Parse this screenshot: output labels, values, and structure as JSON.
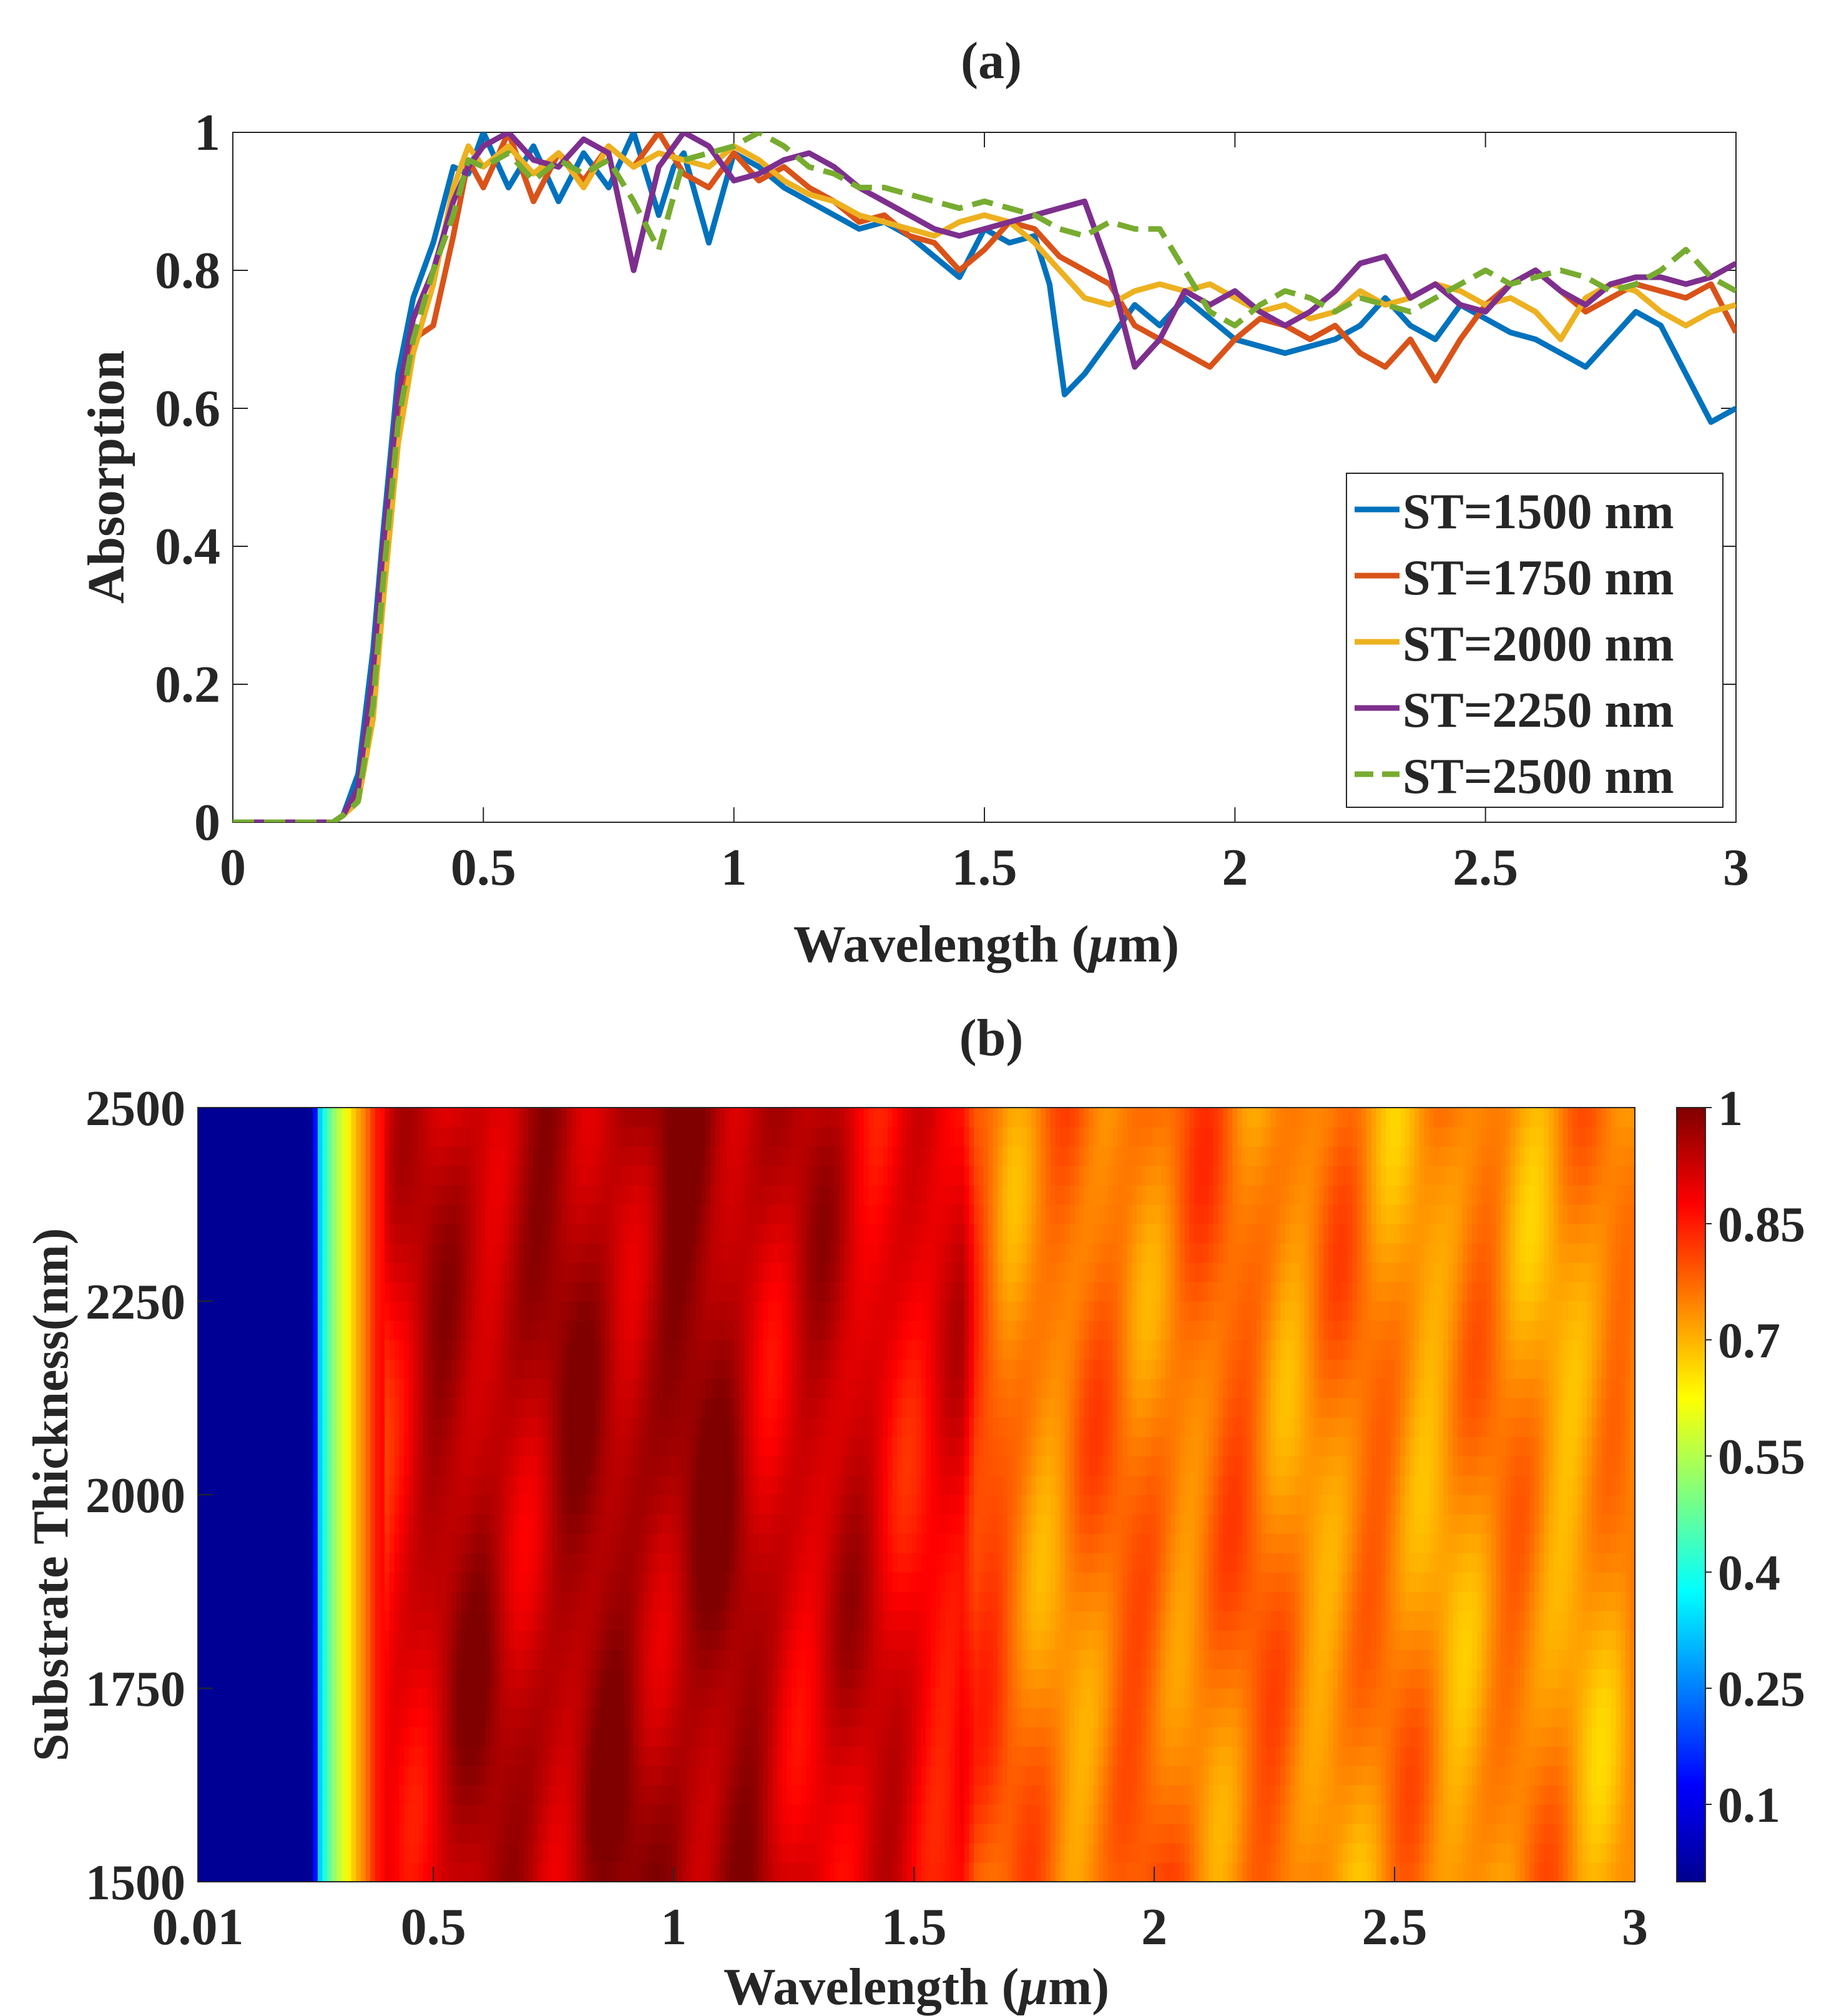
{
  "chart_data": [
    {
      "panel_label": "(a)",
      "type": "line",
      "xlabel_prefix": "Wavelength (",
      "xlabel_mu": "μ",
      "xlabel_suffix": "m)",
      "ylabel": "Absorption",
      "xlim": [
        0,
        3
      ],
      "ylim": [
        0,
        1
      ],
      "xticks": [
        0,
        0.5,
        1,
        1.5,
        2,
        2.5,
        3
      ],
      "xtick_labels": [
        "0",
        "0.5",
        "1",
        "1.5",
        "2",
        "2.5",
        "3"
      ],
      "yticks": [
        0,
        0.2,
        0.4,
        0.6,
        0.8,
        1
      ],
      "ytick_labels": [
        "0",
        "0.2",
        "0.4",
        "0.6",
        "0.8",
        "1"
      ],
      "legend_position": "bottom-right",
      "series": [
        {
          "name": "ST=1500 nm",
          "color": "#0072BD",
          "dash": false,
          "x": [
            0,
            0.1,
            0.2,
            0.22,
            0.25,
            0.28,
            0.3,
            0.33,
            0.36,
            0.4,
            0.44,
            0.47,
            0.5,
            0.55,
            0.6,
            0.65,
            0.7,
            0.75,
            0.8,
            0.85,
            0.88,
            0.9,
            0.95,
            1.0,
            1.05,
            1.1,
            1.15,
            1.2,
            1.25,
            1.3,
            1.35,
            1.4,
            1.45,
            1.5,
            1.55,
            1.6,
            1.63,
            1.66,
            1.7,
            1.75,
            1.8,
            1.85,
            1.9,
            1.95,
            2.0,
            2.05,
            2.1,
            2.15,
            2.2,
            2.25,
            2.3,
            2.35,
            2.4,
            2.45,
            2.5,
            2.55,
            2.6,
            2.65,
            2.7,
            2.75,
            2.8,
            2.85,
            2.9,
            2.95,
            3.0
          ],
          "y": [
            0,
            0,
            0,
            0.01,
            0.07,
            0.25,
            0.42,
            0.65,
            0.76,
            0.84,
            0.95,
            0.94,
            1.0,
            0.92,
            0.98,
            0.9,
            0.97,
            0.92,
            1.0,
            0.88,
            0.95,
            0.97,
            0.84,
            0.97,
            0.95,
            0.92,
            0.9,
            0.88,
            0.86,
            0.87,
            0.85,
            0.82,
            0.79,
            0.86,
            0.84,
            0.85,
            0.78,
            0.62,
            0.65,
            0.7,
            0.75,
            0.72,
            0.76,
            0.73,
            0.7,
            0.69,
            0.68,
            0.69,
            0.7,
            0.72,
            0.76,
            0.72,
            0.7,
            0.75,
            0.73,
            0.71,
            0.7,
            0.68,
            0.66,
            0.7,
            0.74,
            0.72,
            0.65,
            0.58,
            0.6
          ]
        },
        {
          "name": "ST=1750 nm",
          "color": "#D95319",
          "dash": false,
          "x": [
            0,
            0.1,
            0.2,
            0.22,
            0.25,
            0.28,
            0.3,
            0.33,
            0.36,
            0.4,
            0.44,
            0.47,
            0.5,
            0.55,
            0.6,
            0.65,
            0.7,
            0.75,
            0.8,
            0.85,
            0.9,
            0.95,
            1.0,
            1.05,
            1.1,
            1.15,
            1.2,
            1.25,
            1.3,
            1.35,
            1.4,
            1.45,
            1.5,
            1.55,
            1.6,
            1.65,
            1.7,
            1.75,
            1.8,
            1.85,
            1.9,
            1.95,
            2.0,
            2.05,
            2.1,
            2.15,
            2.2,
            2.25,
            2.3,
            2.35,
            2.4,
            2.45,
            2.5,
            2.55,
            2.6,
            2.65,
            2.7,
            2.75,
            2.8,
            2.85,
            2.9,
            2.95,
            3.0
          ],
          "y": [
            0,
            0,
            0,
            0.01,
            0.04,
            0.2,
            0.38,
            0.6,
            0.7,
            0.72,
            0.85,
            0.96,
            0.92,
            1.0,
            0.9,
            0.97,
            0.93,
            0.98,
            0.95,
            1.0,
            0.94,
            0.92,
            0.97,
            0.93,
            0.95,
            0.92,
            0.9,
            0.87,
            0.88,
            0.85,
            0.84,
            0.8,
            0.83,
            0.87,
            0.86,
            0.82,
            0.8,
            0.78,
            0.72,
            0.7,
            0.68,
            0.66,
            0.7,
            0.73,
            0.72,
            0.7,
            0.72,
            0.68,
            0.66,
            0.7,
            0.64,
            0.7,
            0.75,
            0.78,
            0.8,
            0.77,
            0.74,
            0.76,
            0.78,
            0.77,
            0.76,
            0.78,
            0.71
          ]
        },
        {
          "name": "ST=2000 nm",
          "color": "#EDB120",
          "dash": false,
          "x": [
            0,
            0.1,
            0.2,
            0.22,
            0.25,
            0.28,
            0.3,
            0.33,
            0.36,
            0.4,
            0.44,
            0.47,
            0.5,
            0.55,
            0.6,
            0.65,
            0.7,
            0.75,
            0.8,
            0.85,
            0.9,
            0.95,
            1.0,
            1.05,
            1.1,
            1.15,
            1.2,
            1.25,
            1.3,
            1.35,
            1.4,
            1.45,
            1.5,
            1.55,
            1.6,
            1.65,
            1.7,
            1.75,
            1.8,
            1.85,
            1.9,
            1.95,
            2.0,
            2.05,
            2.1,
            2.15,
            2.2,
            2.25,
            2.3,
            2.35,
            2.4,
            2.45,
            2.5,
            2.55,
            2.6,
            2.65,
            2.7,
            2.75,
            2.8,
            2.85,
            2.9,
            2.95,
            3.0
          ],
          "y": [
            0,
            0,
            0,
            0.01,
            0.03,
            0.15,
            0.32,
            0.55,
            0.68,
            0.78,
            0.92,
            0.98,
            0.95,
            0.98,
            0.94,
            0.97,
            0.92,
            0.98,
            0.95,
            0.97,
            0.96,
            0.95,
            0.98,
            0.96,
            0.93,
            0.91,
            0.9,
            0.88,
            0.87,
            0.86,
            0.85,
            0.87,
            0.88,
            0.87,
            0.84,
            0.8,
            0.76,
            0.75,
            0.77,
            0.78,
            0.77,
            0.78,
            0.76,
            0.74,
            0.75,
            0.73,
            0.74,
            0.77,
            0.75,
            0.76,
            0.78,
            0.77,
            0.75,
            0.76,
            0.74,
            0.7,
            0.76,
            0.78,
            0.77,
            0.74,
            0.72,
            0.74,
            0.75
          ]
        },
        {
          "name": "ST=2250 nm",
          "color": "#7E2F8E",
          "dash": false,
          "x": [
            0,
            0.1,
            0.2,
            0.22,
            0.25,
            0.28,
            0.3,
            0.33,
            0.36,
            0.4,
            0.44,
            0.47,
            0.5,
            0.55,
            0.6,
            0.65,
            0.7,
            0.75,
            0.8,
            0.85,
            0.9,
            0.95,
            1.0,
            1.05,
            1.1,
            1.15,
            1.2,
            1.25,
            1.3,
            1.35,
            1.4,
            1.45,
            1.5,
            1.55,
            1.6,
            1.65,
            1.7,
            1.75,
            1.8,
            1.85,
            1.9,
            1.95,
            2.0,
            2.05,
            2.1,
            2.15,
            2.2,
            2.25,
            2.3,
            2.35,
            2.4,
            2.45,
            2.5,
            2.55,
            2.6,
            2.65,
            2.7,
            2.75,
            2.8,
            2.85,
            2.9,
            2.95,
            3.0
          ],
          "y": [
            0,
            0,
            0,
            0.01,
            0.05,
            0.22,
            0.4,
            0.62,
            0.73,
            0.8,
            0.9,
            0.95,
            0.98,
            1.0,
            0.96,
            0.95,
            0.99,
            0.97,
            0.8,
            0.95,
            1.0,
            0.98,
            0.93,
            0.94,
            0.96,
            0.97,
            0.95,
            0.92,
            0.9,
            0.88,
            0.86,
            0.85,
            0.86,
            0.87,
            0.88,
            0.89,
            0.9,
            0.8,
            0.66,
            0.7,
            0.77,
            0.75,
            0.77,
            0.74,
            0.72,
            0.74,
            0.77,
            0.81,
            0.82,
            0.76,
            0.78,
            0.75,
            0.74,
            0.78,
            0.8,
            0.77,
            0.75,
            0.78,
            0.79,
            0.79,
            0.78,
            0.79,
            0.81
          ]
        },
        {
          "name": "ST=2500 nm",
          "color": "#77AC30",
          "dash": true,
          "x": [
            0,
            0.1,
            0.2,
            0.22,
            0.25,
            0.28,
            0.3,
            0.33,
            0.36,
            0.4,
            0.44,
            0.47,
            0.5,
            0.55,
            0.6,
            0.65,
            0.7,
            0.75,
            0.8,
            0.85,
            0.9,
            0.95,
            1.0,
            1.05,
            1.1,
            1.15,
            1.2,
            1.25,
            1.3,
            1.35,
            1.4,
            1.45,
            1.5,
            1.55,
            1.6,
            1.65,
            1.7,
            1.75,
            1.8,
            1.85,
            1.9,
            1.95,
            2.0,
            2.05,
            2.1,
            2.15,
            2.2,
            2.25,
            2.3,
            2.35,
            2.4,
            2.45,
            2.5,
            2.55,
            2.6,
            2.65,
            2.7,
            2.75,
            2.8,
            2.85,
            2.9,
            2.95,
            3.0
          ],
          "y": [
            0,
            0,
            0,
            0.01,
            0.03,
            0.17,
            0.35,
            0.58,
            0.7,
            0.8,
            0.88,
            0.96,
            0.95,
            0.97,
            0.93,
            0.96,
            0.94,
            0.96,
            0.9,
            0.83,
            0.96,
            0.97,
            0.98,
            1.0,
            0.98,
            0.95,
            0.94,
            0.92,
            0.92,
            0.91,
            0.9,
            0.89,
            0.9,
            0.89,
            0.88,
            0.86,
            0.85,
            0.87,
            0.86,
            0.86,
            0.8,
            0.74,
            0.72,
            0.75,
            0.77,
            0.76,
            0.74,
            0.76,
            0.75,
            0.74,
            0.76,
            0.78,
            0.8,
            0.78,
            0.79,
            0.8,
            0.79,
            0.77,
            0.78,
            0.8,
            0.83,
            0.79,
            0.77
          ]
        }
      ]
    },
    {
      "panel_label": "(b)",
      "type": "heatmap",
      "xlabel_prefix": "Wavelength (",
      "xlabel_mu": "μ",
      "xlabel_suffix": "m)",
      "ylabel": "Substrate Thickness(nm)",
      "xlim": [
        0.01,
        3
      ],
      "ylim": [
        1500,
        2500
      ],
      "xticks": [
        0.01,
        0.5,
        1,
        1.5,
        2,
        2.5,
        3
      ],
      "xtick_labels": [
        "0.01",
        "0.5",
        "1",
        "1.5",
        "2",
        "2.5",
        "3"
      ],
      "yticks": [
        1500,
        1750,
        2000,
        2250,
        2500
      ],
      "ytick_labels": [
        "1500",
        "1750",
        "2000",
        "2250",
        "2500"
      ],
      "colorbar_ticks": [
        0.1,
        0.25,
        0.4,
        0.55,
        0.7,
        0.85,
        1
      ],
      "colorbar_labels": [
        "0.1",
        "0.25",
        "0.4",
        "0.55",
        "0.7",
        "0.85",
        "1"
      ],
      "colorbar_range": [
        0,
        1
      ],
      "colormap": "jet",
      "wavelength_profile": {
        "x": [
          0.01,
          0.25,
          0.26,
          0.28,
          0.3,
          0.32,
          0.34,
          0.36,
          0.38,
          0.42,
          0.5,
          0.6,
          0.8,
          1.0,
          1.1,
          1.2,
          1.4,
          1.6,
          1.63,
          1.7,
          1.9,
          2.0,
          2.5,
          3.0
        ],
        "value": [
          0.02,
          0.02,
          0.3,
          0.45,
          0.55,
          0.62,
          0.7,
          0.76,
          0.85,
          0.9,
          0.93,
          0.95,
          0.95,
          0.97,
          0.96,
          0.93,
          0.91,
          0.88,
          0.8,
          0.76,
          0.75,
          0.77,
          0.74,
          0.73
        ]
      }
    }
  ]
}
